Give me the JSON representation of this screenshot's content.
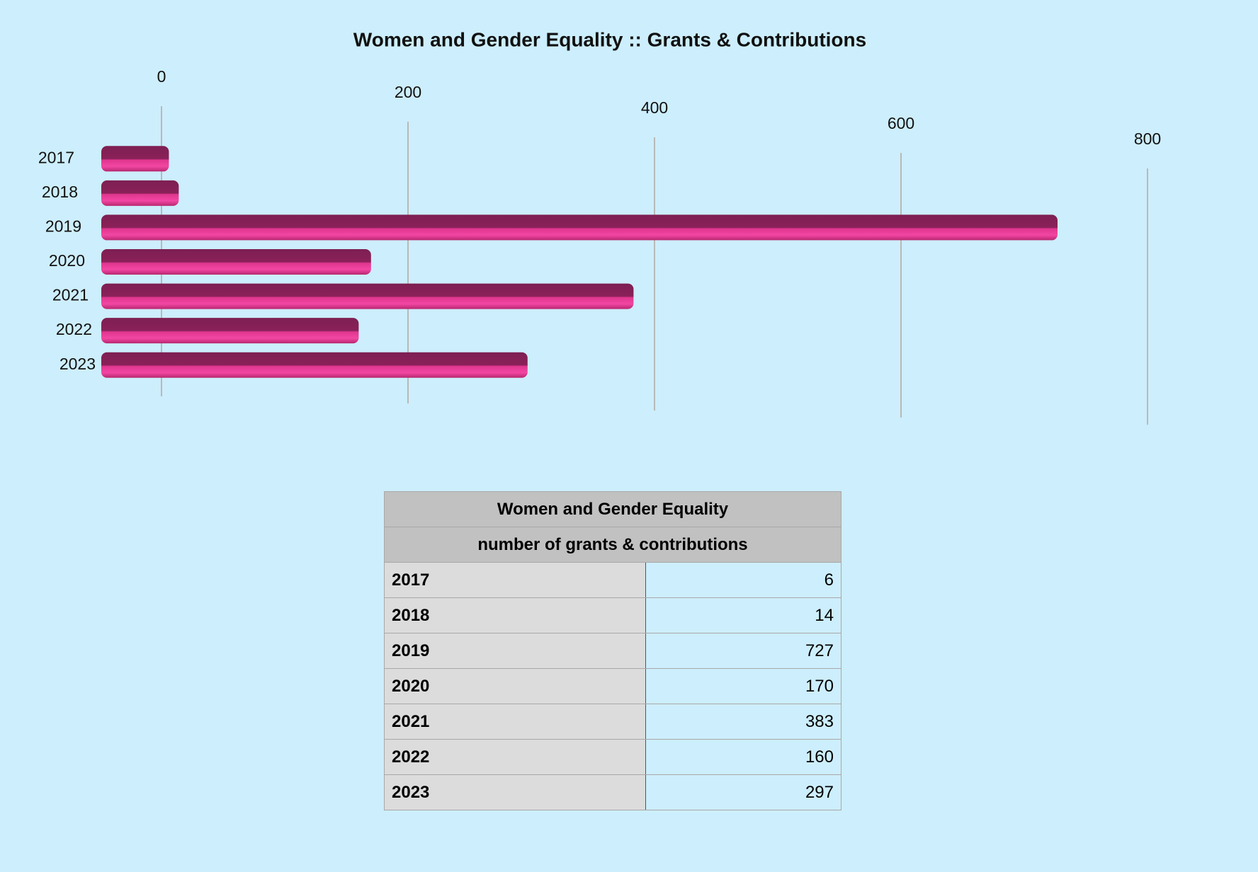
{
  "chart_data": {
    "type": "bar",
    "orientation": "horizontal",
    "title": "Women and Gender Equality :: Grants & Contributions",
    "categories": [
      "2017",
      "2018",
      "2019",
      "2020",
      "2021",
      "2022",
      "2023"
    ],
    "values": [
      6,
      14,
      727,
      170,
      383,
      160,
      297
    ],
    "color": "#e0368f",
    "xlim": [
      0,
      800
    ],
    "xticks": [
      0,
      200,
      400,
      600,
      800
    ],
    "grid": true
  },
  "table": {
    "title": "Women and Gender Equality",
    "subtitle": "number of grants & contributions"
  }
}
